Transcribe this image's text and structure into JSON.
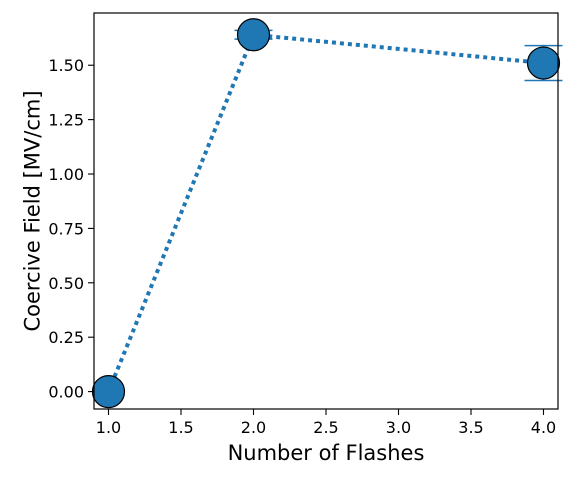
{
  "chart_data": {
    "type": "scatter",
    "title": "",
    "xlabel": "Number of Flashes",
    "ylabel": "Coercive Field [MV/cm]",
    "xlim": [
      0.9,
      4.1
    ],
    "ylim": [
      -0.08,
      1.74
    ],
    "x_ticks": [
      1.0,
      1.5,
      2.0,
      2.5,
      3.0,
      3.5,
      4.0
    ],
    "x_tick_labels": [
      "1.0",
      "1.5",
      "2.0",
      "2.5",
      "3.0",
      "3.5",
      "4.0"
    ],
    "y_ticks": [
      0.0,
      0.25,
      0.5,
      0.75,
      1.0,
      1.25,
      1.5
    ],
    "y_tick_labels": [
      "0.00",
      "0.25",
      "0.50",
      "0.75",
      "1.00",
      "1.25",
      "1.50"
    ],
    "grid": false,
    "legend": "none",
    "series": [
      {
        "line_style": "dotted",
        "color": "#1f77b4",
        "marker": "circle",
        "points": [
          {
            "x": 1.0,
            "y": 0.0,
            "error": 0.0
          },
          {
            "x": 2.0,
            "y": 1.64,
            "error": 0.02
          },
          {
            "x": 4.0,
            "y": 1.51,
            "error": 0.08
          }
        ]
      }
    ]
  }
}
